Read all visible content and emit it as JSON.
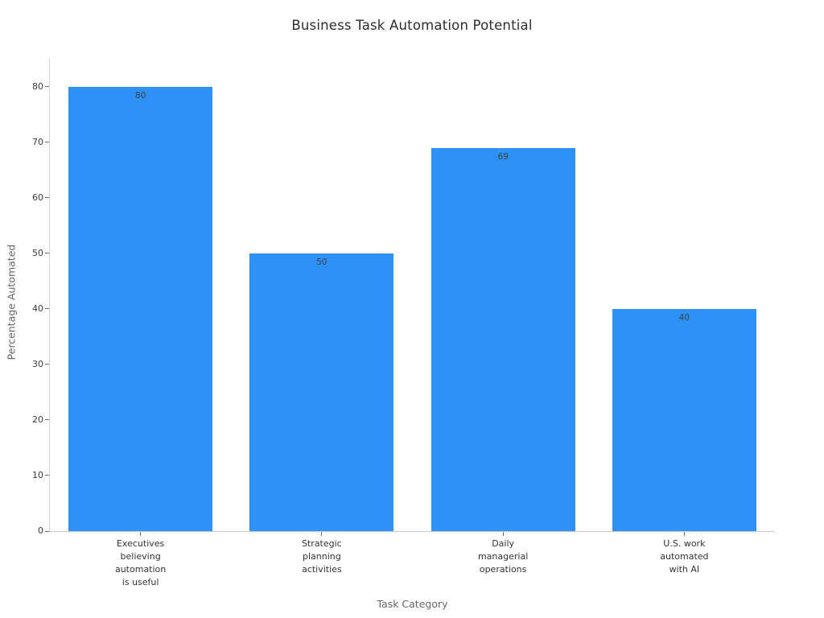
{
  "chart_data": {
    "type": "bar",
    "title": "Business Task Automation Potential",
    "xlabel": "Task Category",
    "ylabel": "Percentage Automated",
    "categories": [
      "Executives\nbelieving\nautomation\nis useful",
      "Strategic\nplanning\nactivities",
      "Daily\nmanagerial\noperations",
      "U.S. work\nautomated\nwith AI"
    ],
    "values": [
      80,
      50,
      69,
      40
    ],
    "value_labels": [
      "80",
      "50",
      "69",
      "40"
    ],
    "yticks": [
      0,
      10,
      20,
      30,
      40,
      50,
      60,
      70,
      80
    ],
    "ylim": [
      0,
      85.2
    ],
    "bar_color": "#2e91f5",
    "grid": false,
    "legend_position": "none",
    "background_color": "#ffffff",
    "axis_line_color": "#cccccc",
    "text_color": "#333333",
    "axis_title_color": "#666666"
  }
}
